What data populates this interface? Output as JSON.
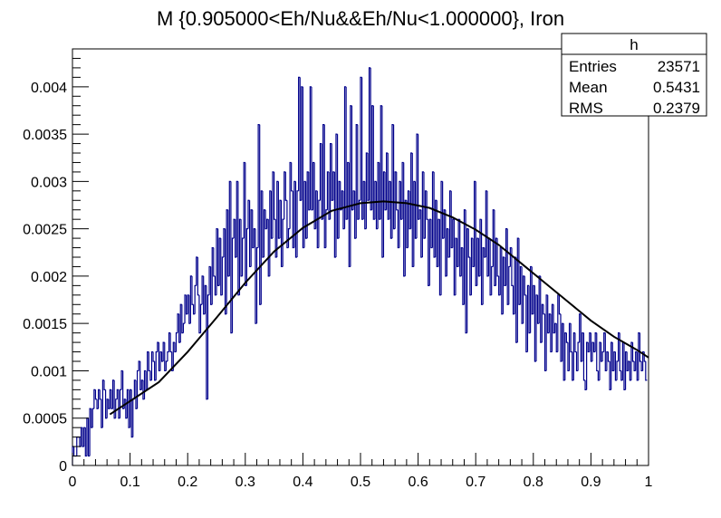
{
  "chart_data": {
    "type": "histogram",
    "title": "M {0.905000<Eh/Nu&&Eh/Nu<1.000000}, Iron",
    "xlabel": "",
    "ylabel": "",
    "xlim": [
      0,
      1
    ],
    "ylim": [
      0,
      0.0044
    ],
    "grid": false,
    "x_ticks": [
      0,
      0.1,
      0.2,
      0.3,
      0.4,
      0.5,
      0.6,
      0.7,
      0.8,
      0.9,
      1
    ],
    "x_tick_labels": [
      "0",
      "0.1",
      "0.2",
      "0.3",
      "0.4",
      "0.5",
      "0.6",
      "0.7",
      "0.8",
      "0.9",
      "1"
    ],
    "y_ticks": [
      0,
      0.0005,
      0.001,
      0.0015,
      0.002,
      0.0025,
      0.003,
      0.0035,
      0.004
    ],
    "y_tick_labels": [
      "0",
      "0.0005",
      "0.001",
      "0.0015",
      "0.002",
      "0.0025",
      "0.003",
      "0.0035",
      "0.004"
    ],
    "histogram": {
      "name": "h",
      "color": "#00008b",
      "bin_width": 0.0025,
      "x_start": 0.0,
      "values": [
        0.0002,
        0.0001,
        0.0001,
        0.0003,
        0.0003,
        0.0002,
        0.0004,
        0.0002,
        0.0004,
        0.0001,
        0.0005,
        0.0001,
        0.0006,
        0.0004,
        0.0006,
        0.0008,
        0.0007,
        0.0006,
        0.0008,
        0.0007,
        0.0004,
        0.0009,
        0.0008,
        0.0005,
        0.0007,
        0.0006,
        0.0008,
        0.0006,
        0.0009,
        0.0005,
        0.0007,
        0.0008,
        0.0005,
        0.0008,
        0.001,
        0.0006,
        0.0007,
        0.0005,
        0.0008,
        0.0004,
        0.0008,
        0.0003,
        0.0007,
        0.0009,
        0.0006,
        0.001,
        0.0011,
        0.0008,
        0.0009,
        0.0007,
        0.001,
        0.0008,
        0.0012,
        0.001,
        0.0009,
        0.0012,
        0.0011,
        0.0009,
        0.0012,
        0.0013,
        0.001,
        0.0012,
        0.0011,
        0.0013,
        0.001,
        0.0011,
        0.0012,
        0.0014,
        0.0012,
        0.001,
        0.0013,
        0.0012,
        0.0014,
        0.0016,
        0.0013,
        0.0017,
        0.0014,
        0.0015,
        0.0018,
        0.0016,
        0.0018,
        0.0015,
        0.002,
        0.0017,
        0.0016,
        0.0019,
        0.0022,
        0.0018,
        0.0014,
        0.0017,
        0.002,
        0.0016,
        0.0019,
        0.0007,
        0.0018,
        0.0021,
        0.0017,
        0.0023,
        0.002,
        0.0018,
        0.0025,
        0.0019,
        0.0024,
        0.0018,
        0.0022,
        0.0025,
        0.0016,
        0.0027,
        0.002,
        0.003,
        0.0014,
        0.0024,
        0.0026,
        0.0022,
        0.003,
        0.0018,
        0.0026,
        0.002,
        0.0024,
        0.0032,
        0.0019,
        0.0025,
        0.0028,
        0.0021,
        0.0027,
        0.0023,
        0.0025,
        0.0015,
        0.0023,
        0.0036,
        0.0017,
        0.0029,
        0.0022,
        0.0027,
        0.0025,
        0.0026,
        0.002,
        0.0029,
        0.0024,
        0.0031,
        0.0026,
        0.0022,
        0.003,
        0.0024,
        0.0028,
        0.0021,
        0.0026,
        0.0031,
        0.0028,
        0.0023,
        0.0025,
        0.0032,
        0.0029,
        0.0023,
        0.003,
        0.0022,
        0.0029,
        0.0041,
        0.0028,
        0.004,
        0.0023,
        0.003,
        0.0024,
        0.0031,
        0.0027,
        0.004,
        0.0027,
        0.0032,
        0.0025,
        0.0029,
        0.0023,
        0.0028,
        0.0034,
        0.0026,
        0.0036,
        0.0023,
        0.0027,
        0.0031,
        0.0026,
        0.0034,
        0.0028,
        0.0031,
        0.0022,
        0.0035,
        0.0024,
        0.003,
        0.0027,
        0.0029,
        0.0025,
        0.004,
        0.0026,
        0.0032,
        0.0021,
        0.0038,
        0.0027,
        0.0029,
        0.0024,
        0.0036,
        0.0026,
        0.0028,
        0.0041,
        0.0026,
        0.003,
        0.0025,
        0.0033,
        0.0028,
        0.0042,
        0.0027,
        0.0038,
        0.0026,
        0.003,
        0.0025,
        0.0032,
        0.0026,
        0.0038,
        0.0022,
        0.0031,
        0.0027,
        0.0033,
        0.0026,
        0.003,
        0.0024,
        0.0036,
        0.0025,
        0.0031,
        0.0027,
        0.0023,
        0.003,
        0.0026,
        0.0032,
        0.002,
        0.0028,
        0.0023,
        0.0029,
        0.0025,
        0.0033,
        0.0021,
        0.003,
        0.0024,
        0.0035,
        0.0026,
        0.0027,
        0.0022,
        0.0031,
        0.0024,
        0.0029,
        0.0026,
        0.0019,
        0.0026,
        0.0023,
        0.0031,
        0.0022,
        0.0028,
        0.0021,
        0.0026,
        0.0018,
        0.003,
        0.0024,
        0.0027,
        0.002,
        0.0025,
        0.0022,
        0.0029,
        0.0023,
        0.0026,
        0.0018,
        0.0024,
        0.0021,
        0.0026,
        0.002,
        0.0023,
        0.0017,
        0.0027,
        0.0014,
        0.0025,
        0.0022,
        0.0018,
        0.0024,
        0.0021,
        0.003,
        0.0019,
        0.0024,
        0.002,
        0.0026,
        0.0017,
        0.0023,
        0.0022,
        0.0029,
        0.002,
        0.0024,
        0.0018,
        0.0021,
        0.0027,
        0.0019,
        0.0024,
        0.002,
        0.0018,
        0.0023,
        0.0016,
        0.0022,
        0.0019,
        0.0025,
        0.0017,
        0.0021,
        0.0023,
        0.0019,
        0.0016,
        0.0022,
        0.0013,
        0.0024,
        0.0017,
        0.0021,
        0.0015,
        0.002,
        0.0018,
        0.0012,
        0.0019,
        0.0014,
        0.0021,
        0.0016,
        0.0019,
        0.0011,
        0.0018,
        0.0015,
        0.002,
        0.0013,
        0.0017,
        0.0016,
        0.001,
        0.0018,
        0.0014,
        0.0016,
        0.0012,
        0.0017,
        0.0014,
        0.0015,
        0.0012,
        0.0018,
        0.0016,
        0.0011,
        0.0015,
        0.0009,
        0.0014,
        0.0013,
        0.001,
        0.0015,
        0.0012,
        0.0009,
        0.0014,
        0.0012,
        0.001,
        0.0013,
        0.0016,
        0.0011,
        0.0014,
        0.0009,
        0.0008,
        0.0013,
        0.0012,
        0.0014,
        0.0011,
        0.0013,
        0.0012,
        0.0014,
        0.001,
        0.0009,
        0.0013,
        0.0011,
        0.0012,
        0.0014,
        0.001,
        0.0012,
        0.0011,
        0.0008,
        0.0013,
        0.001,
        0.0012,
        0.0009,
        0.0011,
        0.0014,
        0.001,
        0.0009,
        0.0013,
        0.0008,
        0.0012,
        0.001,
        0.0011,
        0.0009,
        0.0013,
        0.0011,
        0.001,
        0.0012,
        0.0009,
        0.0014,
        0.0011,
        0.001,
        0.0012,
        0.0011,
        0.0009
      ]
    },
    "fit": {
      "color": "#000000",
      "x": [
        0.065,
        0.1,
        0.15,
        0.2,
        0.25,
        0.3,
        0.35,
        0.4,
        0.45,
        0.5,
        0.54,
        0.58,
        0.62,
        0.66,
        0.7,
        0.74,
        0.78,
        0.82,
        0.86,
        0.9,
        0.94,
        0.98,
        1.0
      ],
      "y": [
        0.00054,
        0.00068,
        0.00088,
        0.0012,
        0.00156,
        0.00193,
        0.00226,
        0.00251,
        0.00269,
        0.00277,
        0.00279,
        0.00277,
        0.00272,
        0.00262,
        0.00249,
        0.00233,
        0.00213,
        0.00193,
        0.00173,
        0.00153,
        0.00136,
        0.00122,
        0.00114
      ]
    },
    "stats_box": {
      "title": "h",
      "rows": [
        {
          "label": "Entries",
          "value": "23571"
        },
        {
          "label": "Mean",
          "value": "0.5431"
        },
        {
          "label": "RMS",
          "value": "0.2379"
        }
      ]
    }
  }
}
